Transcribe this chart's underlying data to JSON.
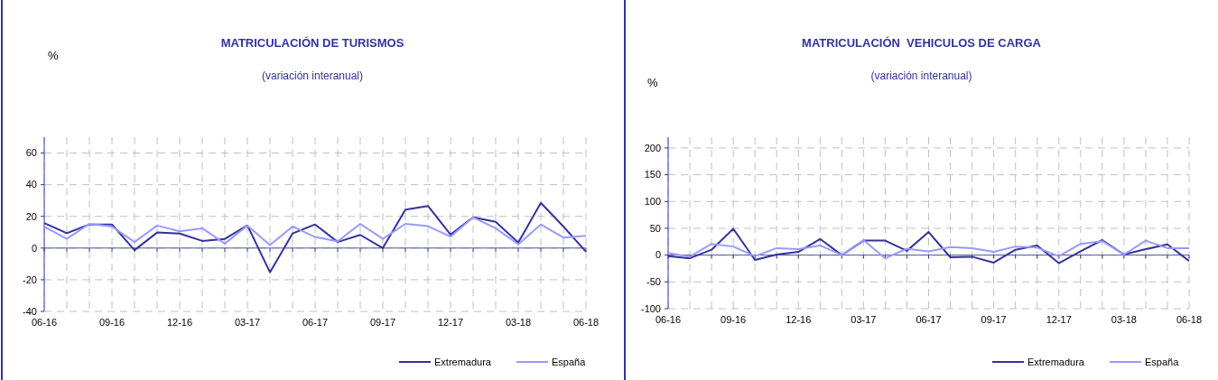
{
  "chart_data": [
    {
      "type": "line",
      "title": "MATRICULACIÓN DE TURISMOS",
      "subtitle": "(variación interanual)",
      "ylabel": "%",
      "categories": [
        "06-16",
        null,
        null,
        "09-16",
        null,
        null,
        "12-16",
        null,
        null,
        "03-17",
        null,
        null,
        "06-17",
        null,
        null,
        "09-17",
        null,
        null,
        "12-17",
        null,
        null,
        "03-18",
        null,
        null,
        "06-18"
      ],
      "series": [
        {
          "name": "Extremadura",
          "color": "#333399",
          "values": [
            15.8,
            9.4,
            14.9,
            14.9,
            -1.3,
            9.8,
            9.2,
            4.5,
            5.8,
            14.3,
            -15.3,
            9.2,
            14.9,
            3.8,
            8.3,
            0,
            24.2,
            26.6,
            8.5,
            19.4,
            16.6,
            3.4,
            28.5,
            13.6,
            -2.3
          ]
        },
        {
          "name": "España",
          "color": "#9999ff",
          "values": [
            13.5,
            5.8,
            15.3,
            13.6,
            3.8,
            14.2,
            10.6,
            12.5,
            2.8,
            14.2,
            1.9,
            13.6,
            7,
            4.2,
            15.3,
            5.8,
            15.3,
            13.8,
            7.2,
            19.4,
            12.5,
            2.3,
            14.9,
            6.6,
            7.7
          ]
        }
      ],
      "ref_lines": [
        {
          "axis": "y",
          "value": 0,
          "color": "#55559f"
        }
      ],
      "ylim": [
        -40,
        70
      ],
      "yticks": [
        -40,
        -20,
        0,
        20,
        40,
        60
      ],
      "grid": true,
      "legend": "bottom right",
      "line_style": "solid",
      "marker": "none"
    },
    {
      "type": "line",
      "title": "MATRICULACIÓN  VEHICULOS DE CARGA",
      "subtitle": "(variación interanual)",
      "ylabel": "%",
      "categories": [
        "06-16",
        null,
        null,
        "09-16",
        null,
        null,
        "12-16",
        null,
        null,
        "03-17",
        null,
        null,
        "06-17",
        null,
        null,
        "09-17",
        null,
        null,
        "12-17",
        null,
        null,
        "03-18",
        null,
        null,
        "06-18"
      ],
      "series": [
        {
          "name": "Extremadura",
          "color": "#333399",
          "values": [
            -2,
            -6,
            10,
            49,
            -9,
            1,
            6,
            30,
            0,
            27,
            27,
            8,
            43,
            -4,
            -3,
            -14,
            10,
            18,
            -15,
            7,
            28,
            1,
            11,
            20,
            -11
          ]
        },
        {
          "name": "España",
          "color": "#9999ff",
          "values": [
            4,
            -3,
            21,
            16,
            -2,
            13,
            11,
            18,
            0,
            28,
            -6,
            12,
            7,
            15,
            13,
            6,
            16,
            14,
            -2,
            21,
            26,
            1,
            27,
            13,
            13
          ]
        }
      ],
      "ref_lines": [
        {
          "axis": "y",
          "value": 0,
          "color": "#55559f"
        }
      ],
      "ylim": [
        -100,
        220
      ],
      "yticks": [
        -100,
        -50,
        0,
        50,
        100,
        150,
        200
      ],
      "grid": true,
      "legend": "bottom right",
      "line_style": "solid",
      "marker": "none"
    }
  ]
}
